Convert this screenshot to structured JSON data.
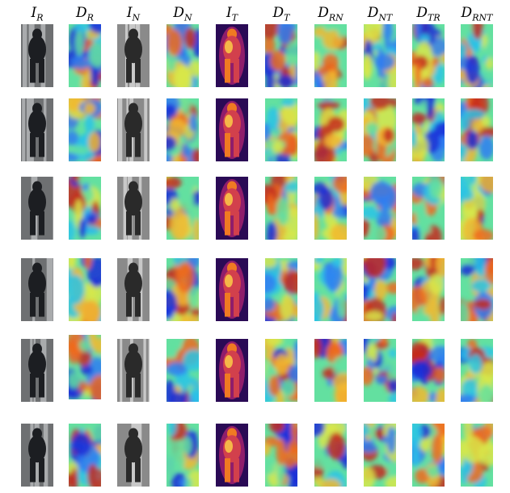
{
  "figure": {
    "columns": [
      {
        "base": "I",
        "sub": "R",
        "kind": "rgb"
      },
      {
        "base": "D",
        "sub": "R",
        "kind": "heat"
      },
      {
        "base": "I",
        "sub": "N",
        "kind": "nir"
      },
      {
        "base": "D",
        "sub": "N",
        "kind": "heat"
      },
      {
        "base": "I",
        "sub": "T",
        "kind": "thermal"
      },
      {
        "base": "D",
        "sub": "T",
        "kind": "heat"
      },
      {
        "base": "D",
        "sub": "RN",
        "kind": "heat"
      },
      {
        "base": "D",
        "sub": "NT",
        "kind": "heat"
      },
      {
        "base": "D",
        "sub": "TR",
        "kind": "heat"
      },
      {
        "base": "D",
        "sub": "RNT",
        "kind": "heat"
      }
    ],
    "row_count": 6
  }
}
